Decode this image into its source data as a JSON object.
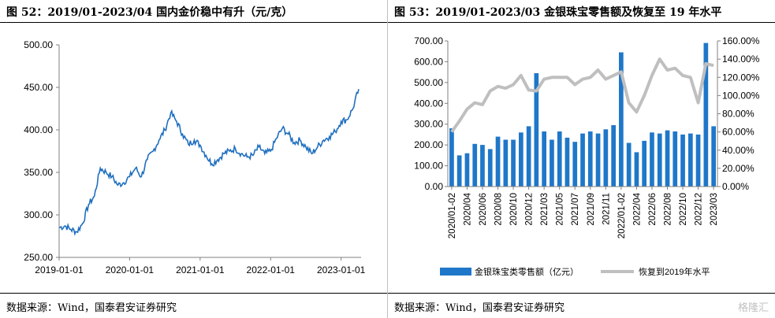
{
  "left": {
    "title": "图 52：2019/01-2023/04 国内金价稳中有升（元/克）",
    "source": "数据来源：Wind，国泰君安证券研究",
    "chart_data": {
      "type": "line",
      "ylim": [
        250,
        500
      ],
      "yticks": [
        "250.00",
        "300.00",
        "350.00",
        "400.00",
        "450.00",
        "500.00"
      ],
      "xticks": [
        "2019-01-01",
        "2020-01-01",
        "2021-01-01",
        "2022-01-01",
        "2023-01-01"
      ],
      "series": [
        {
          "x": [
            "2019-01",
            "2019-02",
            "2019-03",
            "2019-04",
            "2019-05",
            "2019-06",
            "2019-07",
            "2019-08",
            "2019-09",
            "2019-10",
            "2019-11",
            "2019-12",
            "2020-01",
            "2020-02",
            "2020-03",
            "2020-04",
            "2020-05",
            "2020-06",
            "2020-07",
            "2020-08",
            "2020-09",
            "2020-10",
            "2020-11",
            "2020-12",
            "2021-01",
            "2021-02",
            "2021-03",
            "2021-04",
            "2021-05",
            "2021-06",
            "2021-07",
            "2021-08",
            "2021-09",
            "2021-10",
            "2021-11",
            "2021-12",
            "2022-01",
            "2022-02",
            "2022-03",
            "2022-04",
            "2022-05",
            "2022-06",
            "2022-07",
            "2022-08",
            "2022-09",
            "2022-10",
            "2022-11",
            "2022-12",
            "2023-01",
            "2023-02",
            "2023-03",
            "2023-04"
          ],
          "values": [
            285,
            287,
            283,
            280,
            290,
            312,
            322,
            355,
            350,
            345,
            335,
            338,
            345,
            355,
            345,
            365,
            375,
            388,
            400,
            420,
            410,
            395,
            383,
            388,
            382,
            370,
            360,
            365,
            372,
            375,
            378,
            372,
            368,
            370,
            380,
            372,
            375,
            390,
            402,
            395,
            385,
            388,
            380,
            372,
            380,
            388,
            392,
            398,
            410,
            412,
            425,
            448
          ]
        }
      ]
    }
  },
  "right": {
    "title": "图 53：2019/01-2023/03 金银珠宝零售额及恢复至 19 年水平",
    "source": "数据来源：Wind，国泰君安证券研究",
    "watermark": "格隆汇",
    "chart_data": {
      "type": "bar",
      "categories": [
        "2020/01-02",
        "2020/03",
        "2020/04",
        "2020/05",
        "2020/06",
        "2020/07",
        "2020/08",
        "2020/09",
        "2020/10",
        "2020/11",
        "2020/12",
        "2021/01-02",
        "2021/03",
        "2021/04",
        "2021/05",
        "2021/06",
        "2021/07",
        "2021/08",
        "2021/09",
        "2021/10",
        "2021/11",
        "2021/12",
        "2022/01-02",
        "2022/03",
        "2022/04",
        "2022/05",
        "2022/06",
        "2022/07",
        "2022/08",
        "2022/09",
        "2022/10",
        "2022/11",
        "2022/12",
        "2023/01-02",
        "2023/03"
      ],
      "xticks": [
        "2020/01-02",
        "2020/04",
        "2020/06",
        "2020/08",
        "2020/10",
        "2020/12",
        "2021/03",
        "2021/05",
        "2021/07",
        "2021/09",
        "2021/11",
        "2022/01-02",
        "2022/04",
        "2022/06",
        "2022/08",
        "2022/10",
        "2022/12",
        "2023/03"
      ],
      "ylim": [
        0,
        700
      ],
      "yticks": [
        "0.00",
        "100.00",
        "200.00",
        "300.00",
        "400.00",
        "500.00",
        "600.00",
        "700.00"
      ],
      "y2lim": [
        0,
        160
      ],
      "y2ticks": [
        "0.00%",
        "20.00%",
        "40.00%",
        "60.00%",
        "80.00%",
        "100.00%",
        "120.00%",
        "140.00%",
        "160.00%"
      ],
      "series": [
        {
          "name": "金银珠宝类零售额（亿元）",
          "axis": "left",
          "color": "#1f77c9",
          "values": [
            280,
            150,
            160,
            205,
            200,
            180,
            240,
            225,
            225,
            260,
            290,
            545,
            265,
            225,
            265,
            235,
            215,
            255,
            265,
            255,
            275,
            295,
            645,
            210,
            165,
            220,
            260,
            255,
            270,
            265,
            250,
            255,
            250,
            690,
            290
          ]
        },
        {
          "name": "恢复到2019年水平",
          "axis": "right",
          "color": "#bfbfbf",
          "values": [
            60,
            72,
            85,
            92,
            90,
            105,
            110,
            108,
            112,
            122,
            106,
            105,
            118,
            120,
            120,
            120,
            112,
            118,
            120,
            128,
            118,
            122,
            126,
            92,
            82,
            100,
            122,
            140,
            128,
            130,
            122,
            120,
            92,
            135,
            133
          ]
        }
      ],
      "legend": "bottom"
    }
  }
}
